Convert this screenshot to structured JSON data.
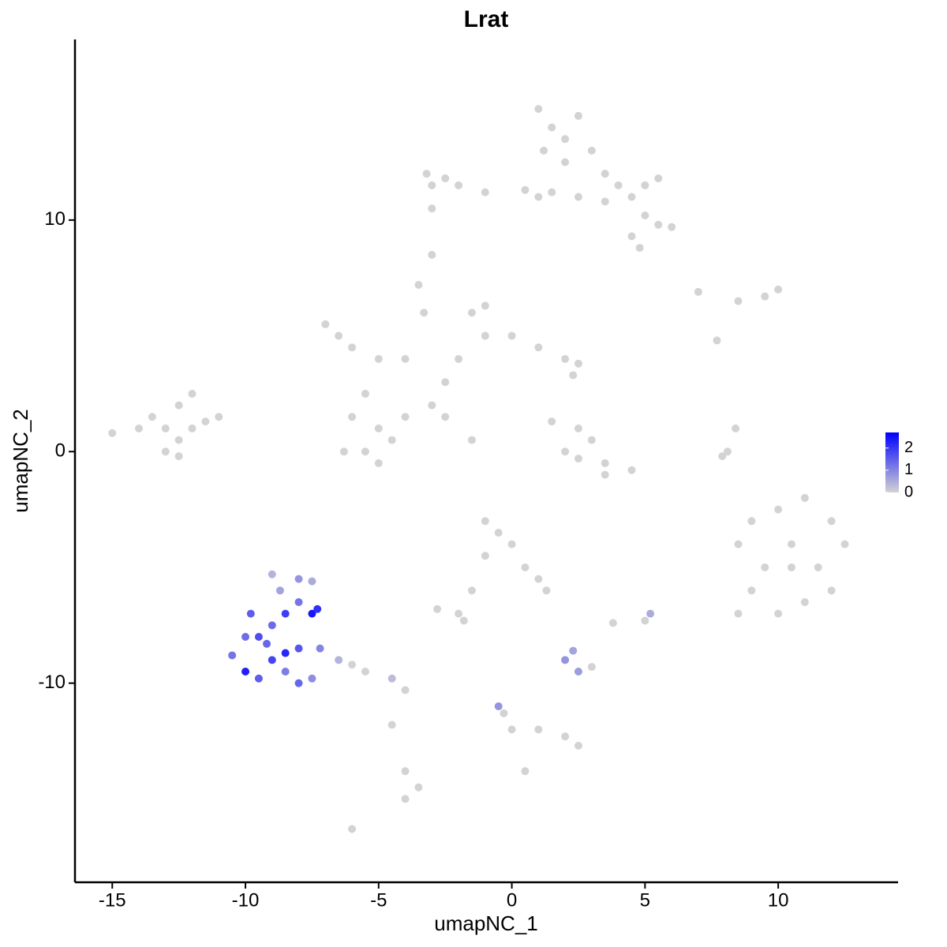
{
  "chart_data": {
    "type": "scatter",
    "title": "Lrat",
    "x_label": "umapNC_1",
    "y_label": "umapNC_2",
    "xlim": [
      -16.4,
      14.5
    ],
    "ylim": [
      -18.6,
      17.8
    ],
    "xticks": [
      -15,
      -10,
      -5,
      0,
      5,
      10
    ],
    "yticks": [
      -10,
      0,
      10
    ],
    "low_color": "#d3d3d3",
    "high_color": "#0000ff",
    "colorlim": [
      0,
      2.7
    ],
    "colorticks": [
      0,
      1,
      2
    ],
    "series": [
      {
        "x": [
          1,
          1.5,
          2,
          2.5,
          1.2,
          2,
          3,
          3.5,
          4,
          4.5,
          5,
          5.5,
          5,
          5.5,
          6,
          4.5,
          4.8,
          3.5,
          2.5,
          1.5,
          1,
          0.5,
          -1,
          -2,
          -3,
          -3.2,
          -2.5,
          -3,
          -3,
          -7,
          -6.5,
          -6,
          -5,
          -4,
          -3.5,
          -3.3,
          -2.5,
          -2,
          -1,
          -1.5,
          -1,
          0,
          1,
          2,
          2.5,
          2.3,
          -3,
          -4,
          -5,
          -6,
          -6.3,
          -5.5,
          -4.5,
          -5,
          -2.5,
          -1.5,
          -5.5,
          -15,
          -14,
          -13.5,
          -13,
          -12.5,
          -12,
          -12.5,
          -12,
          -11.5,
          -11,
          -13,
          -12.5,
          1.5,
          2.5,
          3,
          2,
          2.5,
          3.5,
          4.5,
          3.5,
          8.4,
          8.1,
          7.9,
          7,
          8.5,
          9.5,
          10,
          7.7,
          9,
          10,
          11,
          12,
          12.5,
          11.5,
          10.5,
          9.5,
          8.5,
          9,
          10,
          11,
          12,
          8.5,
          10.5,
          -1,
          -0.5,
          0,
          -1,
          0.5,
          1,
          1.3,
          -1.5,
          -2,
          -2.8,
          -1.8,
          -10.5,
          -10,
          -9.5,
          -9,
          -8.5,
          -8,
          -7.5,
          -9.5,
          -9,
          -8.5,
          -8,
          -8.7,
          -9,
          -8,
          -7.5,
          -7.5,
          -7.2,
          -8,
          -9.8,
          -10,
          -8.5,
          -9.2,
          -7.3,
          -6.5,
          -5.5,
          -4.5,
          -4,
          -6,
          2,
          2.5,
          3,
          2.3,
          3.8,
          5,
          5.2,
          -0.5,
          -0.3,
          0,
          1,
          2,
          2.5,
          -4,
          -3.5,
          -4,
          -6,
          0.5,
          -4.5
        ],
        "values": [
          14.8,
          14,
          13.5,
          14.5,
          13,
          12.5,
          13,
          12,
          11.5,
          11,
          11.5,
          11.8,
          10.2,
          9.8,
          9.7,
          9.3,
          8.8,
          10.8,
          11,
          11.2,
          11,
          11.3,
          11.2,
          11.5,
          11.5,
          12,
          11.8,
          10.5,
          8.5,
          5.5,
          5,
          4.5,
          4,
          4,
          7.2,
          6,
          3,
          4,
          5,
          6,
          6.3,
          5,
          4.5,
          4,
          3.8,
          3.3,
          2,
          1.5,
          1,
          1.5,
          0,
          0,
          0.5,
          -0.5,
          1.5,
          0.5,
          2.5,
          0.8,
          1,
          1.5,
          1,
          2,
          2.5,
          0.5,
          1,
          1.3,
          1.5,
          0,
          -0.2,
          1.3,
          1,
          0.5,
          0,
          -0.3,
          -0.5,
          -0.8,
          -1,
          1,
          0,
          -0.2,
          6.9,
          6.5,
          6.7,
          7,
          4.8,
          -3,
          -2.5,
          -2,
          -3,
          -4,
          -5,
          -5,
          -5,
          -4,
          -6,
          -7,
          -6.5,
          -6,
          -7,
          -4,
          -3,
          -3.5,
          -4,
          -4.5,
          -5,
          -5.5,
          -6,
          -6,
          -7,
          -6.8,
          -7.3,
          -8.8,
          -9.5,
          -9.8,
          -9,
          -9.5,
          -10,
          -9.8,
          -8,
          -7.5,
          -7,
          -6.5,
          -6,
          -5.3,
          -5.5,
          -5.6,
          -7,
          -8.5,
          -8.5,
          -7,
          -8,
          -8.7,
          -8.3,
          -6.8,
          -9,
          -9.5,
          -9.8,
          -10.3,
          -9.2,
          -9,
          -9.5,
          -9.3,
          -8.6,
          -7.4,
          -7.3,
          -7,
          -11,
          -11.3,
          -12,
          -12,
          -12.3,
          -12.7,
          -13.8,
          -14.5,
          -15,
          -16.3,
          -13.8,
          -11.8
        ],
        "expression": [
          0,
          0,
          0,
          0,
          0,
          0,
          0,
          0,
          0,
          0,
          0,
          0,
          0,
          0,
          0,
          0,
          0,
          0,
          0,
          0,
          0,
          0,
          0,
          0,
          0,
          0,
          0,
          0,
          0,
          0,
          0,
          0,
          0,
          0,
          0,
          0,
          0,
          0,
          0,
          0,
          0,
          0,
          0,
          0,
          0,
          0,
          0,
          0,
          0,
          0,
          0,
          0,
          0,
          0,
          0,
          0,
          0,
          0,
          0,
          0,
          0,
          0,
          0,
          0,
          0,
          0,
          0,
          0,
          0,
          0,
          0,
          0,
          0,
          0,
          0,
          0,
          0,
          0,
          0,
          0,
          0,
          0,
          0,
          0,
          0,
          0,
          0,
          0,
          0,
          0,
          0,
          0,
          0,
          0,
          0,
          0,
          0,
          0,
          0,
          0,
          0,
          0,
          0,
          0,
          0,
          0,
          0,
          0,
          0,
          0,
          0,
          1.2,
          2.3,
          1.5,
          1.8,
          1.1,
          1.4,
          0.9,
          1.7,
          1.3,
          1.9,
          1.2,
          0.6,
          0.4,
          0.8,
          0.5,
          2.4,
          1.0,
          1.6,
          1.5,
          1.3,
          2.2,
          1.4,
          2.1,
          0.4,
          0,
          0.3,
          0,
          0,
          0.8,
          0.7,
          0,
          0.6,
          0,
          0,
          0.5,
          0.8,
          0,
          0,
          0,
          0,
          0,
          0,
          0,
          0,
          0,
          0,
          0
        ]
      }
    ]
  }
}
